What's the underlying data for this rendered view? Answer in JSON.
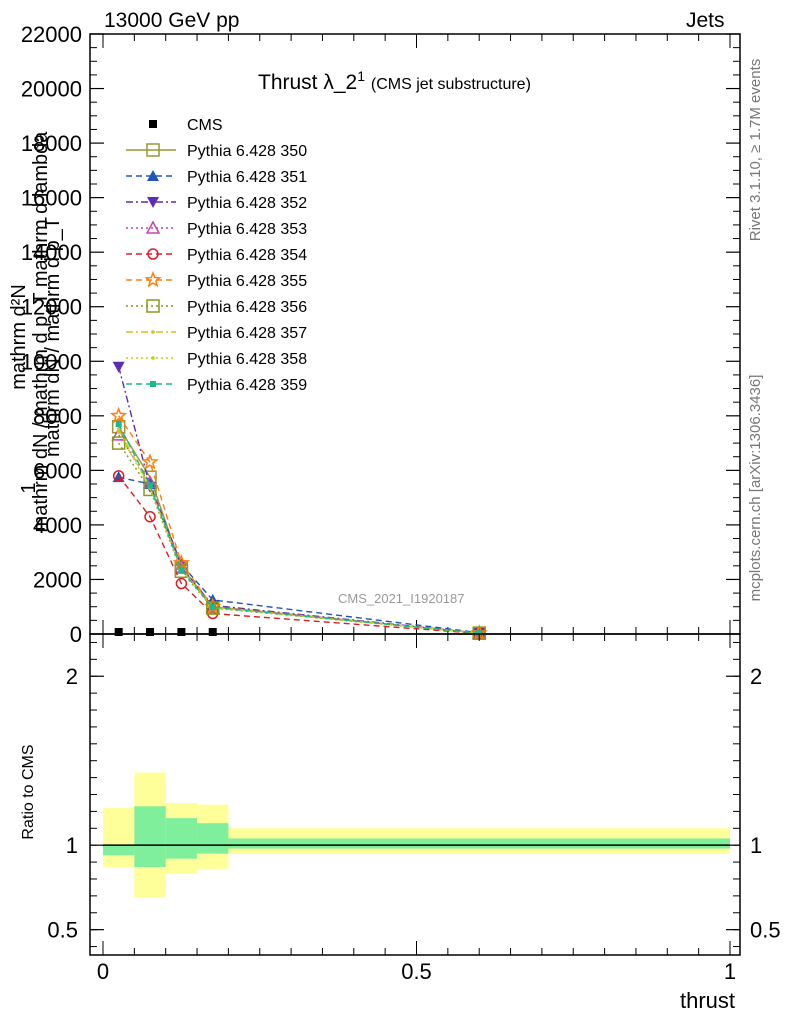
{
  "header": {
    "left": "13000 GeV pp",
    "right": "Jets"
  },
  "side_labels": {
    "rivet": "Rivet 3.1.10, ≥ 1.7M events",
    "mcplots": "mcplots.cern.ch [arXiv:1306.3436]"
  },
  "chart_data": [
    {
      "type": "line",
      "panel": "main",
      "title": {
        "main": "Thrust λ_2",
        "sup": "1",
        "sub": "(CMS jet substructure)"
      },
      "watermark": "CMS_2021_I1920187",
      "ylabel_lines": [
        "mathrm d²N",
        "1",
        "mathrm dN / mathrm d p_T mathrm d lambda",
        "mathrm dN / mathrm d p_T"
      ],
      "xlim": [
        0,
        1
      ],
      "ylim": [
        0,
        22000
      ],
      "yticks": [
        0,
        2000,
        4000,
        6000,
        8000,
        10000,
        12000,
        14000,
        16000,
        18000,
        20000,
        22000
      ],
      "ytick_labels": [
        "0",
        "2000",
        "4000",
        "6000",
        "8000",
        "10000",
        "12000",
        "14000",
        "16000",
        "18000",
        "20000",
        "22000"
      ],
      "x": [
        0.025,
        0.075,
        0.125,
        0.175,
        0.6
      ],
      "series": [
        {
          "name": "CMS",
          "color": "#000000",
          "dash": "",
          "marker": "square-filled",
          "values": [
            5,
            5,
            5,
            5,
            5
          ]
        },
        {
          "name": "Pythia 6.428 350",
          "color": "#999933",
          "dash": "",
          "marker": "square-open",
          "values": [
            7600,
            5750,
            2450,
            1000,
            30
          ]
        },
        {
          "name": "Pythia 6.428 351",
          "color": "#1f57b7",
          "dash": "6,4",
          "marker": "triangle-up-filled",
          "values": [
            5750,
            5500,
            2550,
            1250,
            50
          ]
        },
        {
          "name": "Pythia 6.428 352",
          "color": "#5c2cb4",
          "dash": "7,3,2,3",
          "marker": "triangle-down-filled",
          "values": [
            9800,
            5400,
            2450,
            1050,
            30
          ]
        },
        {
          "name": "Pythia 6.428 353",
          "color": "#cc44aa",
          "dash": "2,3",
          "marker": "triangle-up-open",
          "values": [
            7300,
            5550,
            2450,
            1000,
            30
          ]
        },
        {
          "name": "Pythia 6.428 354",
          "color": "#dd1c2a",
          "dash": "6,4",
          "marker": "circle-open",
          "values": [
            5800,
            4300,
            1850,
            750,
            20
          ]
        },
        {
          "name": "Pythia 6.428 355",
          "color": "#ff7f0e",
          "dash": "6,4",
          "marker": "star-open",
          "values": [
            8000,
            6300,
            2600,
            1000,
            30
          ]
        },
        {
          "name": "Pythia 6.428 356",
          "color": "#8a9a1a",
          "dash": "2,3",
          "marker": "square-open",
          "values": [
            7000,
            5300,
            2300,
            950,
            30
          ]
        },
        {
          "name": "Pythia 6.428 357",
          "color": "#d6c21c",
          "dash": "7,3,2,3",
          "marker": "dot",
          "values": [
            7500,
            5400,
            2400,
            980,
            30
          ]
        },
        {
          "name": "Pythia 6.428 358",
          "color": "#b8d41a",
          "dash": "2,3",
          "marker": "dot",
          "values": [
            7400,
            5350,
            2350,
            970,
            30
          ]
        },
        {
          "name": "Pythia 6.428 359",
          "color": "#1ab98e",
          "dash": "6,4",
          "marker": "square-filled-small",
          "values": [
            7700,
            5450,
            2350,
            980,
            30
          ]
        }
      ]
    },
    {
      "type": "area",
      "panel": "ratio",
      "ylabel": "Ratio to CMS",
      "xlabel": "thrust",
      "xlim": [
        0,
        1
      ],
      "ylim": [
        0.35,
        2.25
      ],
      "xticks": [
        0,
        0.5,
        1
      ],
      "xtick_labels": [
        "0",
        "0.5",
        "1"
      ],
      "yticks": [
        0.5,
        1,
        2
      ],
      "ytick_labels": [
        "0.5",
        "1",
        "2"
      ],
      "bin_edges": [
        0,
        0.05,
        0.1,
        0.15,
        0.2,
        1.0
      ],
      "band_outer": {
        "color": "#ffff99",
        "lo": [
          0.87,
          0.69,
          0.83,
          0.86,
          0.95
        ],
        "hi": [
          1.22,
          1.43,
          1.25,
          1.24,
          1.1
        ]
      },
      "band_inner": {
        "color": "#80ef9c",
        "lo": [
          0.94,
          0.87,
          0.92,
          0.95,
          0.98
        ],
        "hi": [
          1.0,
          1.23,
          1.16,
          1.13,
          1.04
        ]
      },
      "reference_line": 1
    }
  ]
}
